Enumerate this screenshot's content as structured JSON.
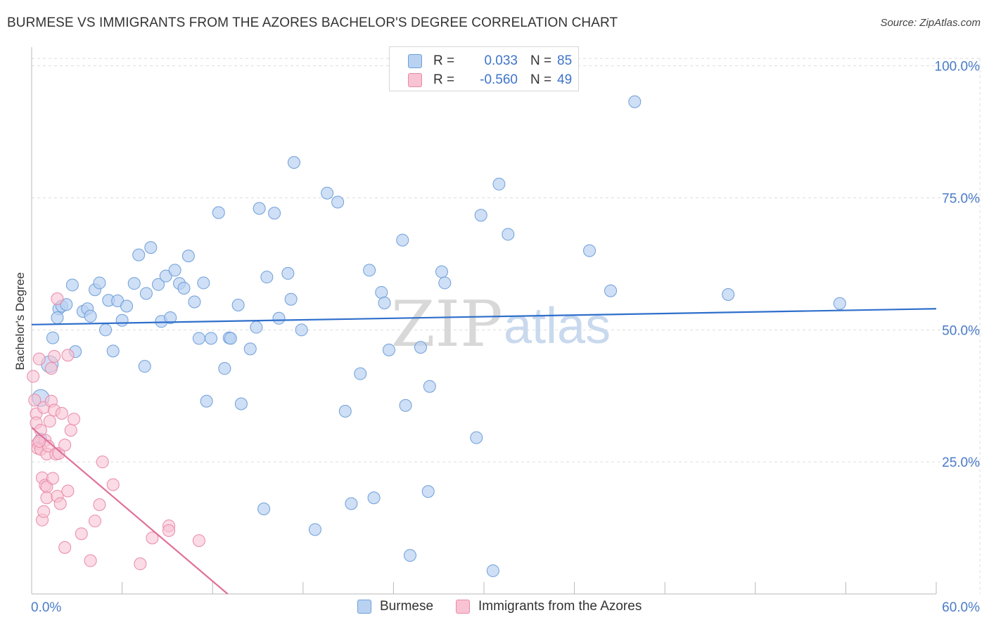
{
  "title": "BURMESE VS IMMIGRANTS FROM THE AZORES BACHELOR'S DEGREE CORRELATION CHART",
  "source": "Source: ZipAtlas.com",
  "watermark": {
    "zip": "ZIP",
    "atlas": "atlas"
  },
  "legend": {
    "rows": [
      {
        "r_label": "R =",
        "r_value": "0.033",
        "n_label": "N =",
        "n_value": "85"
      },
      {
        "r_label": "R =",
        "r_value": "-0.560",
        "n_label": "N =",
        "n_value": "49"
      }
    ]
  },
  "bottom_legend": [
    "Burmese",
    "Immigrants from the Azores"
  ],
  "colors": {
    "blue_fill": "#b9d2f2",
    "blue_stroke": "#6f9fd8",
    "blue_line": "#2f6fcb",
    "pink_fill": "#f8c3d3",
    "pink_stroke": "#e88aa8",
    "pink_line": "#e0709a",
    "grid": "#dddddd",
    "tick_text": "#4a7bc8"
  },
  "chart_data": {
    "type": "scatter",
    "title": "BURMESE VS IMMIGRANTS FROM THE AZORES BACHELOR'S DEGREE CORRELATION CHART",
    "xlabel": "",
    "ylabel": "Bachelor's Degree",
    "xlim": [
      0,
      60
    ],
    "ylim": [
      0,
      102
    ],
    "x_tick_labels": [
      {
        "value": 0,
        "label": "0.0%"
      },
      {
        "value": 60,
        "label": "60.0%"
      }
    ],
    "y_tick_labels": [
      {
        "value": 25,
        "label": "25.0%"
      },
      {
        "value": 50,
        "label": "50.0%"
      },
      {
        "value": 75,
        "label": "75.0%"
      },
      {
        "value": 100,
        "label": "100.0%"
      }
    ],
    "series": [
      {
        "name": "Burmese",
        "R": 0.033,
        "N": 85,
        "trend": {
          "x": [
            0,
            60
          ],
          "y": [
            51,
            54
          ]
        },
        "points": [
          [
            1.2,
            43.5
          ],
          [
            0.6,
            37.1
          ],
          [
            0.6,
            29.3
          ],
          [
            1.4,
            48.5
          ],
          [
            1.8,
            54.0
          ],
          [
            2.0,
            54.5
          ],
          [
            1.7,
            52.3
          ],
          [
            2.7,
            58.5
          ],
          [
            2.9,
            45.9
          ],
          [
            3.4,
            53.5
          ],
          [
            3.7,
            54.0
          ],
          [
            3.9,
            52.6
          ],
          [
            4.2,
            57.6
          ],
          [
            4.5,
            58.9
          ],
          [
            4.9,
            50.0
          ],
          [
            5.1,
            55.6
          ],
          [
            5.4,
            46.0
          ],
          [
            5.7,
            55.5
          ],
          [
            6.0,
            51.8
          ],
          [
            6.3,
            54.5
          ],
          [
            6.8,
            58.8
          ],
          [
            7.1,
            64.2
          ],
          [
            7.5,
            43.1
          ],
          [
            7.6,
            56.9
          ],
          [
            7.9,
            65.6
          ],
          [
            8.4,
            58.6
          ],
          [
            8.6,
            51.6
          ],
          [
            8.9,
            60.2
          ],
          [
            9.2,
            52.3
          ],
          [
            9.5,
            61.3
          ],
          [
            9.8,
            58.8
          ],
          [
            10.1,
            57.9
          ],
          [
            10.4,
            64.0
          ],
          [
            10.8,
            55.3
          ],
          [
            11.1,
            48.4
          ],
          [
            11.4,
            58.9
          ],
          [
            11.6,
            36.5
          ],
          [
            11.9,
            48.4
          ],
          [
            12.4,
            72.2
          ],
          [
            12.8,
            42.7
          ],
          [
            13.1,
            48.5
          ],
          [
            13.2,
            48.4
          ],
          [
            13.7,
            54.7
          ],
          [
            13.9,
            36.0
          ],
          [
            14.5,
            46.4
          ],
          [
            14.9,
            50.5
          ],
          [
            15.1,
            73.0
          ],
          [
            15.4,
            16.1
          ],
          [
            15.6,
            60.0
          ],
          [
            16.1,
            72.1
          ],
          [
            16.4,
            52.2
          ],
          [
            17.0,
            60.7
          ],
          [
            17.2,
            55.8
          ],
          [
            17.4,
            81.7
          ],
          [
            17.9,
            50.0
          ],
          [
            18.8,
            12.2
          ],
          [
            19.6,
            75.9
          ],
          [
            20.3,
            74.2
          ],
          [
            20.8,
            34.6
          ],
          [
            21.2,
            17.1
          ],
          [
            21.8,
            41.7
          ],
          [
            22.4,
            61.3
          ],
          [
            22.7,
            18.2
          ],
          [
            23.2,
            57.1
          ],
          [
            23.4,
            55.1
          ],
          [
            23.7,
            46.2
          ],
          [
            24.6,
            67.0
          ],
          [
            24.8,
            35.7
          ],
          [
            25.1,
            7.3
          ],
          [
            25.8,
            46.7
          ],
          [
            26.3,
            19.4
          ],
          [
            26.4,
            39.3
          ],
          [
            27.2,
            61.0
          ],
          [
            27.4,
            58.9
          ],
          [
            29.5,
            29.6
          ],
          [
            29.8,
            71.7
          ],
          [
            30.6,
            4.4
          ],
          [
            31.0,
            77.6
          ],
          [
            31.6,
            68.1
          ],
          [
            37.0,
            65.0
          ],
          [
            38.4,
            57.4
          ],
          [
            40.0,
            93.2
          ],
          [
            46.2,
            56.7
          ],
          [
            53.6,
            55.0
          ],
          [
            2.3,
            54.8
          ]
        ]
      },
      {
        "name": "Immigrants from the Azores",
        "R": -0.56,
        "N": 49,
        "trend": {
          "x": [
            0,
            13
          ],
          "y": [
            31.5,
            0
          ]
        },
        "points": [
          [
            0.1,
            41.2
          ],
          [
            0.2,
            36.7
          ],
          [
            0.3,
            34.1
          ],
          [
            0.3,
            32.4
          ],
          [
            0.4,
            28.5
          ],
          [
            0.4,
            27.6
          ],
          [
            0.5,
            44.5
          ],
          [
            0.6,
            31.0
          ],
          [
            0.6,
            27.4
          ],
          [
            0.7,
            14.0
          ],
          [
            0.7,
            22.0
          ],
          [
            0.8,
            15.6
          ],
          [
            0.8,
            35.3
          ],
          [
            0.9,
            20.6
          ],
          [
            0.9,
            29.1
          ],
          [
            1.0,
            20.3
          ],
          [
            1.0,
            26.5
          ],
          [
            1.0,
            18.2
          ],
          [
            1.1,
            28.0
          ],
          [
            1.2,
            32.7
          ],
          [
            1.3,
            42.7
          ],
          [
            1.3,
            36.5
          ],
          [
            1.4,
            21.9
          ],
          [
            1.5,
            34.8
          ],
          [
            1.6,
            26.5
          ],
          [
            1.7,
            55.9
          ],
          [
            1.7,
            18.5
          ],
          [
            1.8,
            26.6
          ],
          [
            1.9,
            17.1
          ],
          [
            2.0,
            34.2
          ],
          [
            2.2,
            8.8
          ],
          [
            2.2,
            28.2
          ],
          [
            2.4,
            45.2
          ],
          [
            2.4,
            19.5
          ],
          [
            2.6,
            31.0
          ],
          [
            2.8,
            33.1
          ],
          [
            3.3,
            11.4
          ],
          [
            3.9,
            6.3
          ],
          [
            4.2,
            13.8
          ],
          [
            4.5,
            16.9
          ],
          [
            4.7,
            25.0
          ],
          [
            5.4,
            20.7
          ],
          [
            7.2,
            5.7
          ],
          [
            8.0,
            10.6
          ],
          [
            9.1,
            12.9
          ],
          [
            9.1,
            12.0
          ],
          [
            11.1,
            10.1
          ],
          [
            1.5,
            45.0
          ],
          [
            0.5,
            28.9
          ]
        ]
      }
    ]
  }
}
